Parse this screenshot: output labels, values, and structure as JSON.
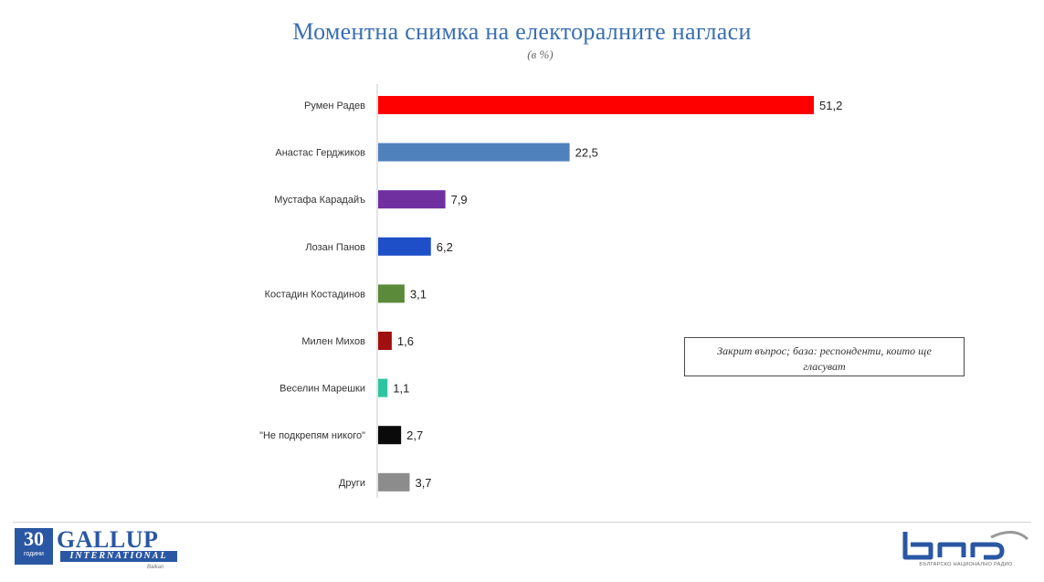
{
  "title": "Моментна снимка на електоралните нагласи",
  "subtitle": "(в %)",
  "note": "Закрит въпрос; база: респонденти, които ще гласуват",
  "chart_data": {
    "type": "bar",
    "orientation": "horizontal",
    "title": "Моментна снимка на електоралните нагласи",
    "subtitle": "(в %)",
    "categories": [
      "Румен Радев",
      "Анастас Герджиков",
      "Мустафа Карадайъ",
      "Лозан Панов",
      "Костадин Костадинов",
      "Милен Михов",
      "Веселин Марешки",
      "\"Не подкрепям никого\"",
      "Други"
    ],
    "values": [
      51.2,
      22.5,
      7.9,
      6.2,
      3.1,
      1.6,
      1.1,
      2.7,
      3.7
    ],
    "value_labels": [
      "51,2",
      "22,5",
      "7,9",
      "6,2",
      "3,1",
      "1,6",
      "1,1",
      "2,7",
      "3,7"
    ],
    "colors": [
      "#ff0000",
      "#4f81bd",
      "#7030a0",
      "#1f4fc8",
      "#5a8a3a",
      "#a01010",
      "#2ec4a0",
      "#0a0a0a",
      "#8c8c8c"
    ],
    "xlim": [
      0,
      60
    ],
    "grid": false,
    "legend": "none"
  },
  "logos": {
    "gallup_years": "30",
    "gallup_years_caption": "години",
    "gallup_name": "GALLUP",
    "gallup_international": "INTERNATIONAL",
    "gallup_region": "Balkan",
    "bnr_caption": "БЪЛГАРСКО НАЦИОНАЛНО РАДИО"
  }
}
